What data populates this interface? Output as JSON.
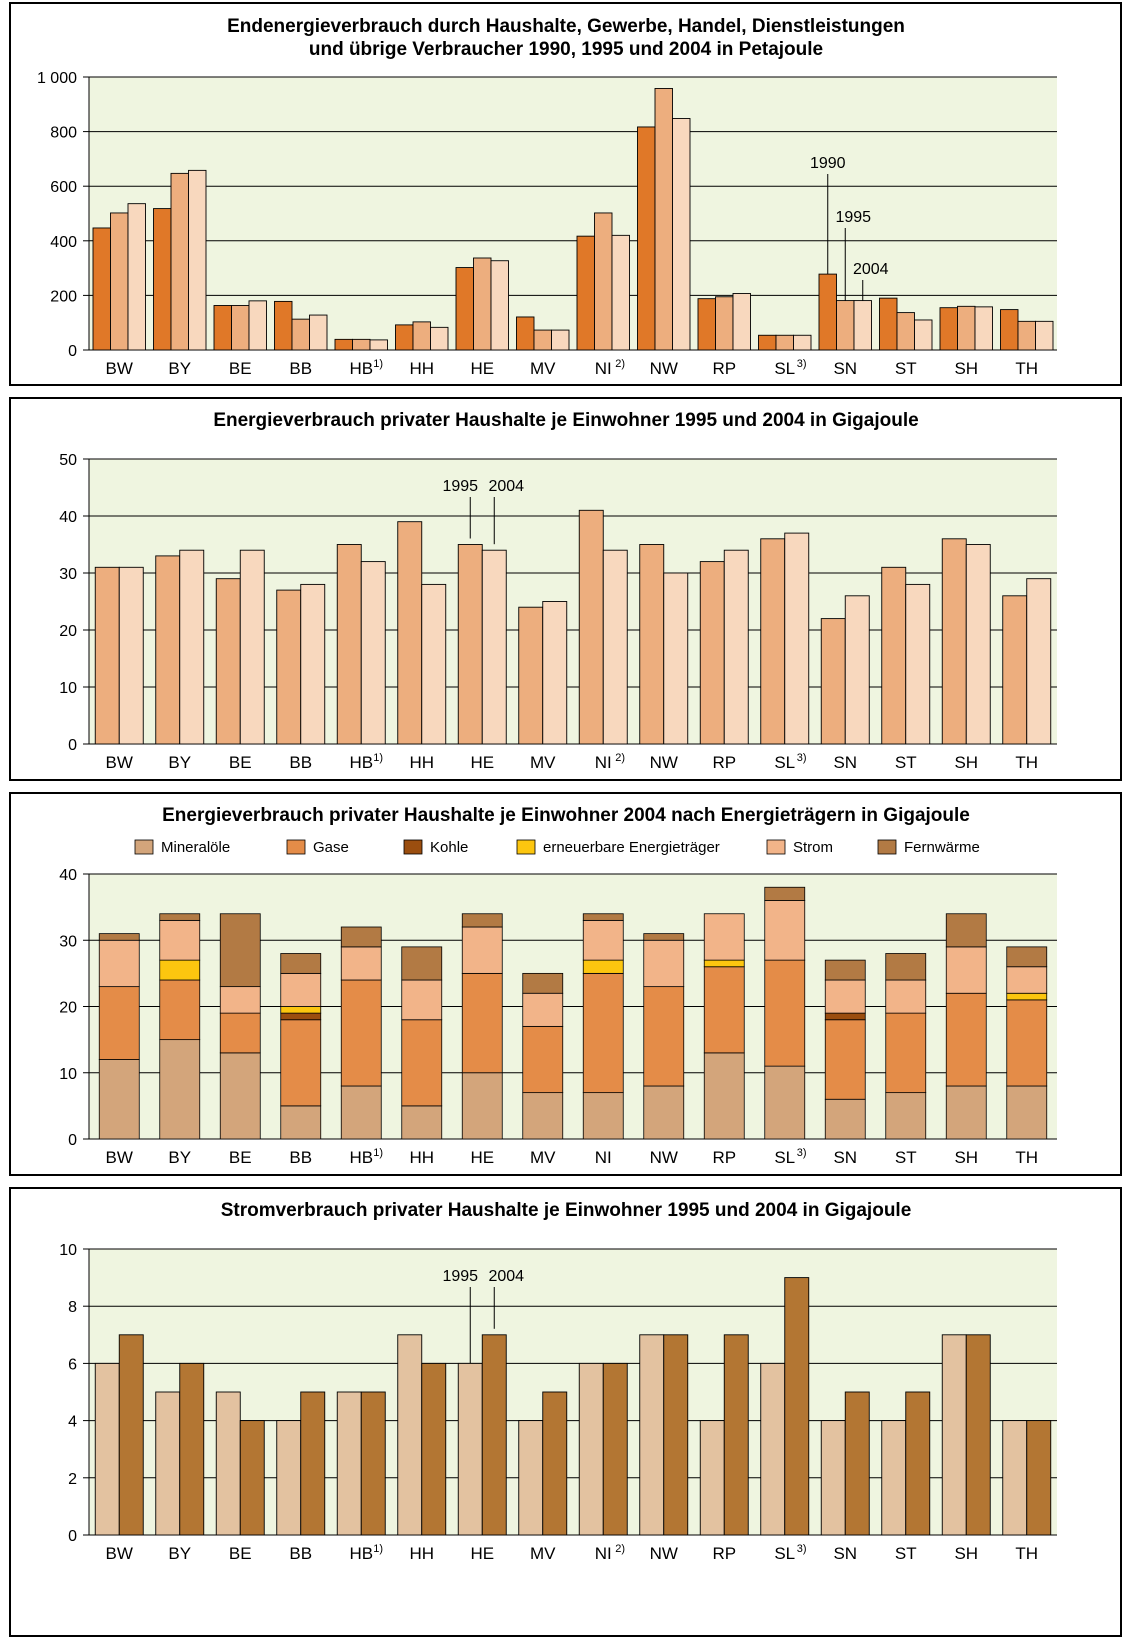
{
  "colors": {
    "plot_bg": "#eff5e0",
    "y1990": "#e07828",
    "y1995": "#edae7e",
    "y2004": "#f8d8be",
    "strom1995": "#e3c2a0",
    "strom2004": "#b37633",
    "mineraloele": "#d3a57b",
    "gase": "#e48c48",
    "kohle": "#9b4e0f",
    "erneuerbare": "#fcc60f",
    "strom": "#f2b489",
    "fernwaerme": "#b27a44"
  },
  "chart_data": [
    {
      "type": "bar",
      "title_lines": [
        "Endenergieverbrauch durch Haushalte, Gewerbe, Handel, Dienstleistungen",
        "und übrige Verbraucher 1990, 1995 und 2004 in Petajoule"
      ],
      "categories": [
        "BW",
        "BY",
        "BE",
        "BB",
        "HB",
        "HH",
        "HE",
        "MV",
        "NI",
        "NW",
        "RP",
        "SL",
        "SN",
        "ST",
        "SH",
        "TH"
      ],
      "category_footnotes": [
        "",
        "",
        "",
        "",
        "1)",
        "",
        "",
        "",
        "2)",
        "",
        "",
        "3)",
        "",
        "",
        "",
        ""
      ],
      "yticks": [
        "0",
        "200",
        "400",
        "600",
        "800",
        "1 000"
      ],
      "ylim": [
        0,
        1000
      ],
      "grid": true,
      "series": [
        {
          "year": "1990",
          "values": [
            447,
            518,
            163,
            178,
            39,
            92,
            302,
            121,
            417,
            817,
            188,
            54,
            278,
            190,
            155,
            148
          ]
        },
        {
          "year": "1995",
          "values": [
            502,
            647,
            163,
            113,
            39,
            103,
            337,
            73,
            502,
            958,
            195,
            54,
            181,
            137,
            160,
            105
          ]
        },
        {
          "year": "2004",
          "values": [
            536,
            658,
            180,
            128,
            37,
            83,
            327,
            73,
            420,
            848,
            207,
            54,
            181,
            110,
            158,
            105
          ]
        }
      ],
      "annotations": [
        "1990",
        "1995",
        "2004"
      ]
    },
    {
      "type": "bar",
      "title_lines": [
        "Energieverbrauch privater Haushalte je Einwohner 1995 und 2004 in Gigajoule"
      ],
      "categories": [
        "BW",
        "BY",
        "BE",
        "BB",
        "HB",
        "HH",
        "HE",
        "MV",
        "NI",
        "NW",
        "RP",
        "SL",
        "SN",
        "ST",
        "SH",
        "TH"
      ],
      "category_footnotes": [
        "",
        "",
        "",
        "",
        "1)",
        "",
        "",
        "",
        "2)",
        "",
        "",
        "3)",
        "",
        "",
        "",
        ""
      ],
      "yticks": [
        "0",
        "10",
        "20",
        "30",
        "40",
        "50"
      ],
      "ylim": [
        0,
        50
      ],
      "grid": true,
      "series": [
        {
          "year": "1995",
          "values": [
            31,
            33,
            29,
            27,
            35,
            39,
            35,
            24,
            41,
            35,
            32,
            36,
            22,
            31,
            36,
            26
          ]
        },
        {
          "year": "2004",
          "values": [
            31,
            34,
            34,
            28,
            32,
            28,
            34,
            25,
            34,
            30,
            34,
            37,
            26,
            28,
            35,
            29
          ]
        }
      ],
      "annotations": [
        "1995",
        "2004"
      ]
    },
    {
      "type": "bar",
      "stacked": true,
      "title_lines": [
        "Energieverbrauch privater Haushalte je Einwohner 2004 nach Energieträgern in Gigajoule"
      ],
      "categories": [
        "BW",
        "BY",
        "BE",
        "BB",
        "HB",
        "HH",
        "HE",
        "MV",
        "NI",
        "NW",
        "RP",
        "SL",
        "SN",
        "ST",
        "SH",
        "TH"
      ],
      "category_footnotes": [
        "",
        "",
        "",
        "",
        "1)",
        "",
        "",
        "",
        "",
        "",
        "",
        "3)",
        "",
        "",
        "",
        ""
      ],
      "yticks": [
        "0",
        "10",
        "20",
        "30",
        "40"
      ],
      "ylim": [
        0,
        40
      ],
      "grid": true,
      "legend_position": "top",
      "series": [
        {
          "name": "Mineralöle",
          "values": [
            12,
            15,
            13,
            5,
            8,
            5,
            10,
            7,
            7,
            8,
            13,
            11,
            6,
            7,
            8,
            8
          ]
        },
        {
          "name": "Gase",
          "values": [
            11,
            9,
            6,
            13,
            16,
            13,
            15,
            10,
            18,
            15,
            13,
            16,
            12,
            12,
            14,
            13
          ]
        },
        {
          "name": "Kohle",
          "values": [
            0,
            0,
            0,
            1,
            0,
            0,
            0,
            0,
            0,
            0,
            0,
            0,
            1,
            0,
            0,
            0
          ]
        },
        {
          "name": "erneuerbare Energieträger",
          "values": [
            0,
            3,
            0,
            1,
            0,
            0,
            0,
            0,
            2,
            0,
            1,
            0,
            0,
            0,
            0,
            1
          ]
        },
        {
          "name": "Strom",
          "values": [
            7,
            6,
            4,
            5,
            5,
            6,
            7,
            5,
            6,
            7,
            7,
            9,
            5,
            5,
            7,
            4
          ]
        },
        {
          "name": "Fernwärme",
          "values": [
            1,
            1,
            11,
            3,
            3,
            5,
            2,
            3,
            1,
            1,
            0,
            2,
            3,
            4,
            5,
            3
          ]
        }
      ]
    },
    {
      "type": "bar",
      "title_lines": [
        "Stromverbrauch privater Haushalte je Einwohner 1995 und 2004 in Gigajoule"
      ],
      "categories": [
        "BW",
        "BY",
        "BE",
        "BB",
        "HB",
        "HH",
        "HE",
        "MV",
        "NI",
        "NW",
        "RP",
        "SL",
        "SN",
        "ST",
        "SH",
        "TH"
      ],
      "category_footnotes": [
        "",
        "",
        "",
        "",
        "1)",
        "",
        "",
        "",
        "2)",
        "",
        "",
        "3)",
        "",
        "",
        "",
        ""
      ],
      "yticks": [
        "0",
        "2",
        "4",
        "6",
        "8",
        "10"
      ],
      "ylim": [
        0,
        10
      ],
      "grid": true,
      "series": [
        {
          "year": "1995",
          "values": [
            6,
            5,
            5,
            4,
            5,
            7,
            6,
            4,
            6,
            7,
            4,
            6,
            4,
            4,
            7,
            4
          ]
        },
        {
          "year": "2004",
          "values": [
            7,
            6,
            4,
            5,
            5,
            6,
            7,
            5,
            6,
            7,
            7,
            9,
            5,
            5,
            7,
            4
          ]
        }
      ],
      "annotations": [
        "1995",
        "2004"
      ]
    }
  ]
}
